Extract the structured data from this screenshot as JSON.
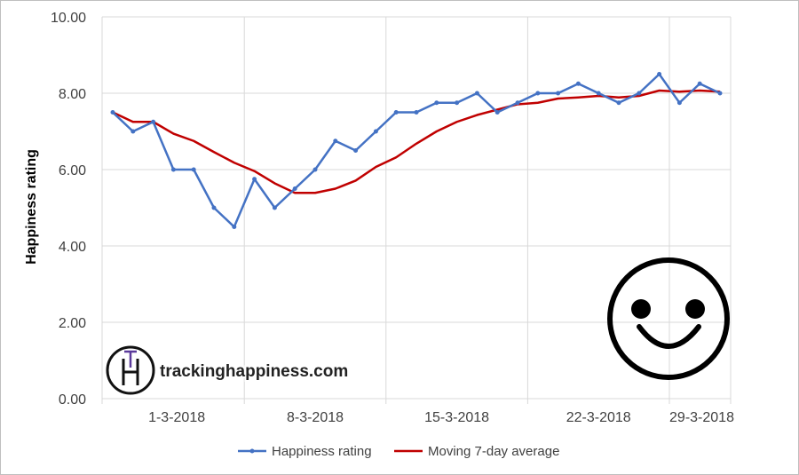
{
  "chart_data": {
    "type": "line",
    "title": "",
    "xlabel": "",
    "ylabel": "Happiness rating",
    "ylim": [
      0,
      10
    ],
    "y_ticks": [
      "0.00",
      "2.00",
      "4.00",
      "6.00",
      "8.00",
      "10.00"
    ],
    "x_tick_labels": [
      "1-3-2018",
      "8-3-2018",
      "15-3-2018",
      "22-3-2018",
      "29-3-2018"
    ],
    "x": [
      "1-3-2018",
      "2-3-2018",
      "3-3-2018",
      "4-3-2018",
      "5-3-2018",
      "6-3-2018",
      "7-3-2018",
      "8-3-2018",
      "9-3-2018",
      "10-3-2018",
      "11-3-2018",
      "12-3-2018",
      "13-3-2018",
      "14-3-2018",
      "15-3-2018",
      "16-3-2018",
      "17-3-2018",
      "18-3-2018",
      "19-3-2018",
      "20-3-2018",
      "21-3-2018",
      "22-3-2018",
      "23-3-2018",
      "24-3-2018",
      "25-3-2018",
      "26-3-2018",
      "27-3-2018",
      "28-3-2018",
      "29-3-2018",
      "30-3-2018",
      "31-3-2018"
    ],
    "grid": true,
    "legend_position": "bottom",
    "series": [
      {
        "name": "Happiness rating",
        "color": "#4472c4",
        "markers": true,
        "values": [
          7.5,
          7.0,
          7.25,
          6.0,
          6.0,
          5.0,
          4.5,
          5.75,
          5.0,
          5.5,
          6.0,
          6.75,
          6.5,
          7.0,
          7.5,
          7.5,
          7.75,
          7.75,
          8.0,
          7.5,
          7.75,
          8.0,
          8.0,
          8.25,
          8.0,
          7.75,
          8.0,
          8.5,
          7.75,
          8.25,
          8.0
        ]
      },
      {
        "name": "Moving 7-day average",
        "color": "#c00000",
        "markers": false,
        "values": [
          7.5,
          7.25,
          7.25,
          6.94,
          6.75,
          6.46,
          6.18,
          5.96,
          5.64,
          5.39,
          5.39,
          5.5,
          5.71,
          6.07,
          6.32,
          6.68,
          7.0,
          7.25,
          7.43,
          7.57,
          7.71,
          7.75,
          7.86,
          7.89,
          7.93,
          7.89,
          7.93,
          8.07,
          8.04,
          8.07,
          8.04
        ]
      }
    ]
  },
  "overlays": {
    "logo_letters": "TH",
    "logo_text": "trackinghappiness.com",
    "smiley_icon": "smiley-face-icon"
  }
}
